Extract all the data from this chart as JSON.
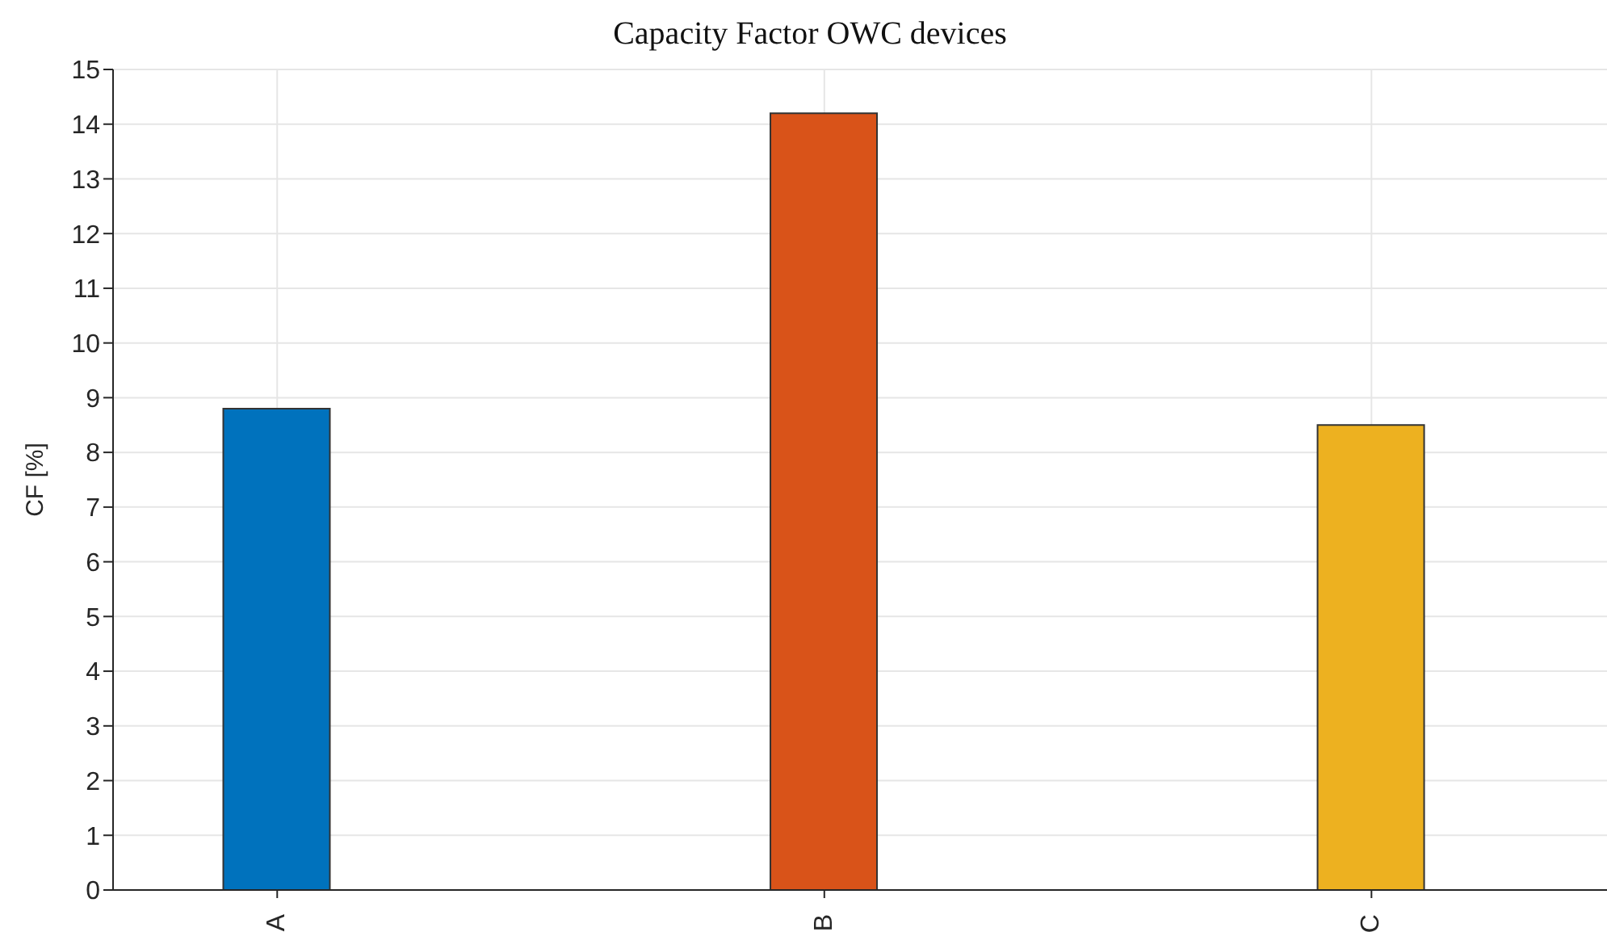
{
  "chart_data": {
    "type": "bar",
    "title": "Capacity Factor OWC devices",
    "ylabel": "CF [%]",
    "categories": [
      "A",
      "B",
      "C"
    ],
    "values": [
      8.8,
      14.2,
      8.5
    ],
    "colors": [
      "#0072bd",
      "#d95319",
      "#edb120"
    ],
    "ylim": [
      0,
      15
    ],
    "yticks": [
      0,
      1,
      2,
      3,
      4,
      5,
      6,
      7,
      8,
      9,
      10,
      11,
      12,
      13,
      14,
      15
    ],
    "grid": true
  }
}
